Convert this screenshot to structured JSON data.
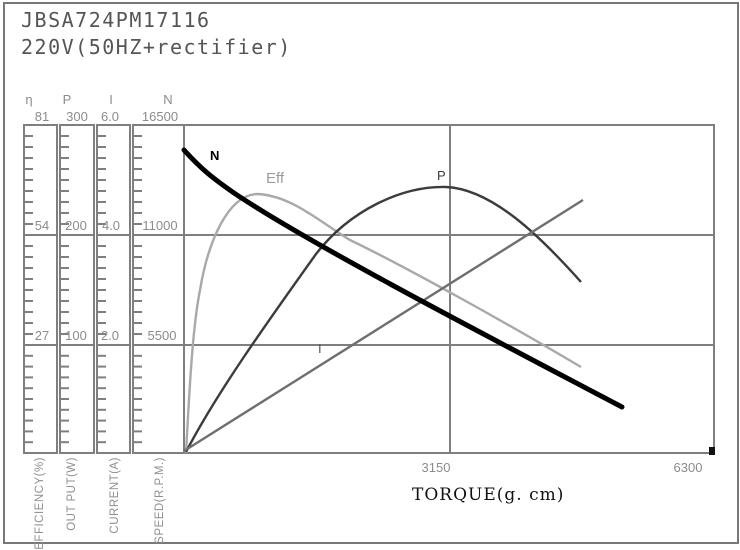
{
  "figure": {
    "title_line1": "JBSA724PM17116",
    "title_line2": "220V(50HZ+rectifier)"
  },
  "y_axes": [
    {
      "symbol": "η",
      "top_value": "81",
      "mid_value": "54",
      "low_value": "27",
      "unit_label": "EFFICIENCY(%)"
    },
    {
      "symbol": "P",
      "top_value": "300",
      "mid_value": "200",
      "low_value": "100",
      "unit_label": "OUT PUT(W)"
    },
    {
      "symbol": "I",
      "top_value": "6.0",
      "mid_value": "4.0",
      "low_value": "2.0",
      "unit_label": "CURRENT(A)"
    },
    {
      "symbol": "N",
      "top_value": "16500",
      "mid_value": "11000",
      "low_value": "5500",
      "unit_label": "SPEED(R.P.M.)"
    }
  ],
  "x_axis": {
    "title": "TORQUE(g. cm)",
    "tick_mid": "3150",
    "tick_end": "6300"
  },
  "curve_labels": {
    "speed": "N",
    "efficiency": "Eff",
    "power": "P",
    "current": "I"
  },
  "colors": {
    "axis_gray": "#7f7f7f",
    "label_gray": "#8c8c8c",
    "title_gray": "#555555",
    "curve_speed": "#000000",
    "curve_power": "#3c3c3c",
    "curve_current": "#6f6f6f",
    "curve_efficiency": "#a9a9a9"
  },
  "chart_data": {
    "type": "line",
    "title": "JBSA724PM17116 220V(50HZ+rectifier)",
    "xlabel": "TORQUE(g. cm)",
    "xlim": [
      0,
      6300
    ],
    "x_ticks": [
      0,
      3150,
      6300
    ],
    "grid": true,
    "legend_position": "inline-curve-labels",
    "y_axes": [
      {
        "symbol": "η",
        "name": "EFFICIENCY(%)",
        "range": [
          0,
          81
        ],
        "ticks": [
          27,
          54,
          81
        ]
      },
      {
        "symbol": "P",
        "name": "OUT PUT(W)",
        "range": [
          0,
          300
        ],
        "ticks": [
          100,
          200,
          300
        ]
      },
      {
        "symbol": "I",
        "name": "CURRENT(A)",
        "range": [
          0,
          6.0
        ],
        "ticks": [
          2.0,
          4.0,
          6.0
        ]
      },
      {
        "symbol": "N",
        "name": "SPEED(R.P.M.)",
        "range": [
          0,
          16500
        ],
        "ticks": [
          5500,
          11000,
          16500
        ]
      }
    ],
    "series": [
      {
        "name": "N",
        "quantity": "speed",
        "unit": "R.P.M.",
        "x": [
          0,
          710,
          1400,
          2330,
          3220,
          4230,
          5220
        ],
        "y": [
          15240,
          12680,
          10970,
          8800,
          6690,
          4430,
          2310
        ]
      },
      {
        "name": "Eff",
        "quantity": "efficiency",
        "unit": "%",
        "x": [
          40,
          190,
          880,
          1950,
          3160,
          4730
        ],
        "y": [
          0,
          40,
          64,
          53,
          41,
          21
        ]
      },
      {
        "name": "P",
        "quantity": "output power",
        "unit": "W",
        "x": [
          25,
          845,
          1590,
          3190,
          4090,
          4730
        ],
        "y": [
          1,
          103,
          184,
          242,
          200,
          157
        ]
      },
      {
        "name": "I",
        "quantity": "current",
        "unit": "A",
        "x": [
          0,
          4740
        ],
        "y": [
          0.05,
          4.63
        ]
      }
    ]
  }
}
